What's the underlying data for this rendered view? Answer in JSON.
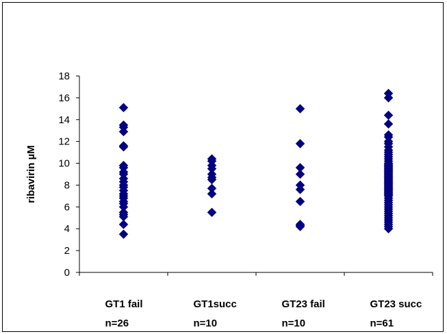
{
  "chart_data": {
    "type": "scatter",
    "title": "",
    "xlabel": "",
    "ylabel": "ribavirin µM",
    "ylim": [
      0,
      18
    ],
    "yticks": [
      0,
      2,
      4,
      6,
      8,
      10,
      12,
      14,
      16,
      18
    ],
    "grid": false,
    "legend": "none",
    "marker_color": "#000080",
    "marker": "diamond",
    "categories": [
      {
        "line1": "GT1 fail",
        "line2": "n=26"
      },
      {
        "line1": "GT1succ",
        "line2": "n=10"
      },
      {
        "line1": "GT23 fail",
        "line2": "n=10"
      },
      {
        "line1": "GT23 succ",
        "line2": "n=61"
      }
    ],
    "series": [
      {
        "values": [
          15.1,
          13.5,
          13.3,
          12.9,
          11.6,
          11.5,
          9.8,
          9.6,
          9.2,
          9.0,
          8.6,
          8.3,
          8.0,
          7.8,
          7.5,
          7.2,
          7.0,
          6.8,
          6.5,
          6.3,
          6.0,
          5.5,
          5.3,
          5.1,
          4.4,
          3.5
        ]
      },
      {
        "values": [
          10.4,
          10.2,
          9.8,
          9.5,
          9.0,
          8.7,
          8.5,
          7.7,
          7.2,
          5.5
        ]
      },
      {
        "values": [
          15.0,
          11.8,
          9.6,
          9.0,
          8.0,
          7.6,
          6.5,
          4.4,
          4.3,
          4.2
        ]
      },
      {
        "values": [
          16.4,
          16.0,
          14.4,
          13.6,
          12.6,
          12.4,
          12.0,
          11.8,
          11.5,
          11.2,
          11.0,
          10.8,
          10.6,
          10.4,
          10.2,
          10.0,
          9.9,
          9.8,
          9.7,
          9.6,
          9.5,
          9.4,
          9.3,
          9.2,
          9.1,
          9.0,
          8.9,
          8.8,
          8.7,
          8.6,
          8.5,
          8.4,
          8.3,
          8.2,
          8.1,
          8.0,
          7.9,
          7.8,
          7.7,
          7.6,
          7.5,
          7.4,
          7.3,
          7.2,
          7.1,
          7.0,
          6.8,
          6.6,
          6.4,
          6.2,
          6.0,
          5.8,
          5.6,
          5.4,
          5.2,
          5.0,
          4.8,
          4.6,
          4.4,
          4.2,
          4.0
        ]
      }
    ]
  }
}
